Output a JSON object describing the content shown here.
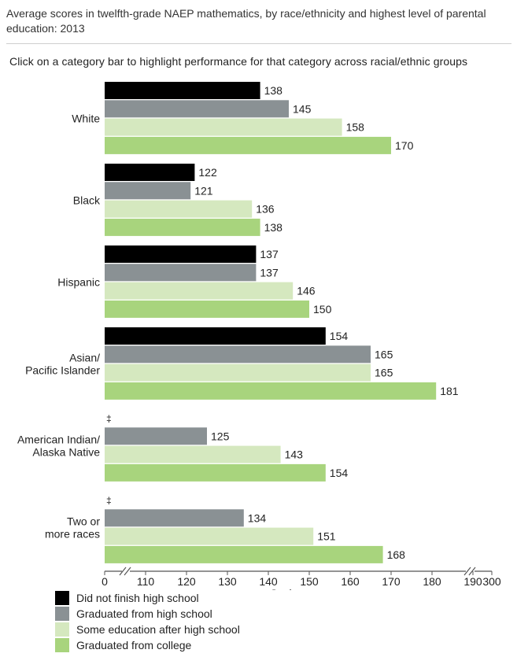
{
  "page": {
    "title": "Average scores in twelfth-grade NAEP mathematics, by race/ethnicity and highest level of parental education: 2013",
    "instruction": "Click on a category bar to highlight performance for that category across racial/ethnic groups"
  },
  "chart_data": {
    "type": "bar",
    "orientation": "horizontal",
    "title": "Average scores in twelfth-grade NAEP mathematics, by race/ethnicity and highest level of parental education: 2013",
    "xlabel": "Scale score",
    "ylabel": "",
    "xlim": [
      100,
      190
    ],
    "axis_break": true,
    "x_ticks": [
      "0",
      "110",
      "120",
      "130",
      "140",
      "150",
      "160",
      "170",
      "180",
      "190",
      "300"
    ],
    "x_tick_values": [
      100,
      110,
      120,
      130,
      140,
      150,
      160,
      170,
      180,
      190,
      200
    ],
    "categories": [
      [
        "White"
      ],
      [
        "Black"
      ],
      [
        "Hispanic"
      ],
      [
        "Asian/",
        "Pacific Islander"
      ],
      [
        "American Indian/",
        "Alaska Native"
      ],
      [
        "Two or",
        "more races"
      ]
    ],
    "series": [
      {
        "name": "Did not finish high school",
        "color": "#000000",
        "values": [
          138,
          122,
          137,
          154,
          null,
          null
        ]
      },
      {
        "name": "Graduated from high school",
        "color": "#8a9194",
        "values": [
          145,
          121,
          137,
          165,
          125,
          134
        ]
      },
      {
        "name": "Some education after high school",
        "color": "#d5e8bf",
        "values": [
          158,
          136,
          146,
          165,
          143,
          151
        ]
      },
      {
        "name": "Graduated from college",
        "color": "#a8d47d",
        "values": [
          170,
          138,
          150,
          181,
          154,
          168
        ]
      }
    ],
    "missing_marker": "‡",
    "legend_position": "bottom-left"
  }
}
